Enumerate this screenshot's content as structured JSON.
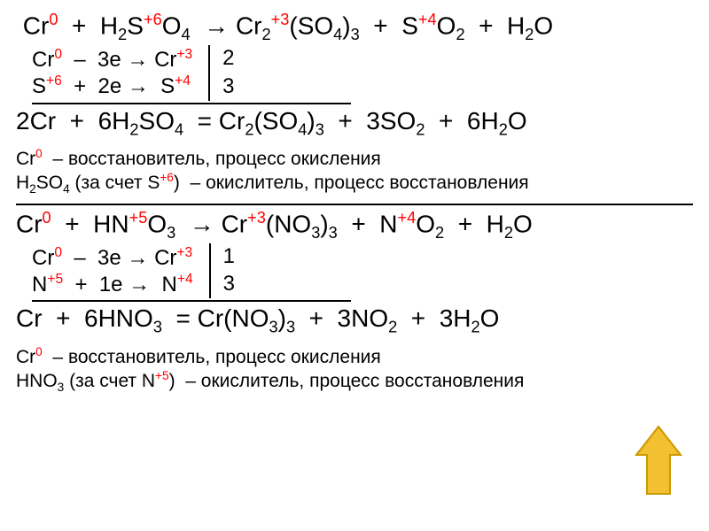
{
  "colors": {
    "accent": "#ff0000",
    "text": "#000000",
    "arrow_fill": "#f2c030",
    "arrow_stroke": "#c99a00",
    "bg": "#ffffff"
  },
  "font": {
    "family": "Arial",
    "big_pt": 28,
    "normal_pt": 24,
    "small_pt": 21
  },
  "eq1": {
    "unbalanced_html": "&nbsp;Cr<sup class='red'>0</sup>&nbsp; +&nbsp; H<sub>2</sub>S<sup class='red'>+6</sup>O<sub>4</sub>&nbsp; → Cr<sub>2</sub><sup class='red'>+3</sup>(SO<sub>4</sub>)<sub>3</sub>&nbsp; +&nbsp; S<sup class='red'>+4</sup>O<sub>2</sub>&nbsp; +&nbsp; H<sub>2</sub>O",
    "half1_html": "Cr<sup class='red'>0</sup>&nbsp; –&nbsp; 3e → Cr<sup class='red'>+3</sup>",
    "half2_html": "S<sup class='red'>+6</sup>&nbsp; +&nbsp; 2e →&nbsp; S<sup class='red'>+4</sup>",
    "mult1": "2",
    "mult2": "3",
    "balanced_html": "2Cr&nbsp; +&nbsp; 6H<sub>2</sub>SO<sub>4</sub>&nbsp; = Cr<sub>2</sub>(SO<sub>4</sub>)<sub>3</sub>&nbsp; +&nbsp; 3SO<sub>2</sub>&nbsp; +&nbsp; 6H<sub>2</sub>O",
    "role1_html": "Cr<sup class='red'>0</sup>&nbsp; – восстановитель, процесс окисления",
    "role2_html": "H<sub>2</sub>SO<sub>4</sub> (за счет S<sup class='red'>+6</sup>)&nbsp; – окислитель, процесс восстановления"
  },
  "eq2": {
    "unbalanced_html": "Cr<sup class='red'>0</sup>&nbsp; +&nbsp; HN<sup class='red'>+5</sup>O<sub>3</sub>&nbsp; → Cr<sup class='red'>+3</sup>(NO<sub>3</sub>)<sub>3</sub>&nbsp; +&nbsp; N<sup class='red'>+4</sup>O<sub>2</sub>&nbsp; +&nbsp; H<sub>2</sub>O",
    "half1_html": "Cr<sup class='red'>0</sup>&nbsp; –&nbsp; 3e → Cr<sup class='red'>+3</sup>",
    "half2_html": "N<sup class='red'>+5</sup>&nbsp; +&nbsp; 1e →&nbsp; N<sup class='red'>+4</sup>",
    "mult1": "1",
    "mult2": "3",
    "balanced_html": "Cr&nbsp; +&nbsp; 6HNO<sub>3</sub>&nbsp; = Cr(NO<sub>3</sub>)<sub>3</sub>&nbsp; +&nbsp; 3NO<sub>2</sub>&nbsp; +&nbsp; 3H<sub>2</sub>O",
    "role1_html": "Cr<sup class='red'>0</sup>&nbsp; – восстановитель, процесс окисления",
    "role2_html": "HNO<sub>3</sub> (за счет N<sup class='red'>+5</sup>)&nbsp; – окислитель, процесс восстановления"
  }
}
